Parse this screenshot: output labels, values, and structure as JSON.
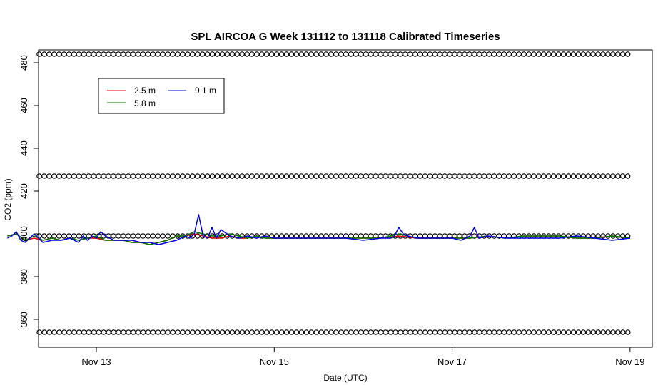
{
  "chart_data": {
    "type": "line",
    "title": "SPL AIRCOA G  Week 131112 to 131118  Calibrated Timeseries",
    "xlabel": "Date (UTC)",
    "ylabel": "CO2 (ppm)",
    "xlim": [
      12.35,
      19.25
    ],
    "ylim": [
      347,
      486
    ],
    "x_ticks": [
      {
        "value": 13,
        "label": "Nov 13"
      },
      {
        "value": 15,
        "label": "Nov 15"
      },
      {
        "value": 17,
        "label": "Nov 17"
      },
      {
        "value": 19,
        "label": "Nov 19"
      }
    ],
    "y_ticks": [
      {
        "value": 360,
        "label": "360"
      },
      {
        "value": 380,
        "label": "380"
      },
      {
        "value": 400,
        "label": "400"
      },
      {
        "value": 420,
        "label": "420"
      },
      {
        "value": 440,
        "label": "440"
      },
      {
        "value": 460,
        "label": "460"
      },
      {
        "value": 480,
        "label": "480"
      }
    ],
    "legend": {
      "placement": "top-left",
      "entries": [
        {
          "name": "2.5 m",
          "color": "#dd0000"
        },
        {
          "name": "5.8 m",
          "color": "#007700"
        },
        {
          "name": "9.1 m",
          "color": "#0000dd"
        }
      ]
    },
    "series": [
      {
        "name": "2.5 m",
        "color": "#dd0000",
        "x": [
          12.0,
          12.1,
          12.2,
          12.3,
          12.4,
          12.5,
          12.6,
          12.7,
          12.8,
          12.9,
          13.0,
          13.1,
          13.2,
          13.3,
          13.4,
          13.5,
          13.6,
          13.7,
          13.8,
          13.9,
          14.0,
          14.1,
          14.2,
          14.3,
          14.4,
          14.5,
          14.6,
          14.7,
          14.8,
          14.9,
          15.0,
          15.2,
          15.4,
          15.6,
          15.8,
          16.0,
          16.2,
          16.4,
          16.6,
          16.8,
          17.0,
          17.2,
          17.4,
          17.6,
          17.8,
          18.0,
          18.2,
          18.4,
          18.6,
          18.8,
          19.0
        ],
        "y": [
          399,
          400,
          397,
          398,
          397,
          398,
          397,
          398,
          397,
          398,
          398,
          397,
          397,
          397,
          396,
          396,
          395,
          396,
          397,
          399,
          399,
          400,
          399,
          398,
          398,
          399,
          398,
          398,
          399,
          398,
          398,
          398,
          398,
          398,
          398,
          398,
          398,
          399,
          398,
          398,
          398,
          398,
          399,
          398,
          399,
          399,
          399,
          398,
          398,
          399,
          398
        ]
      },
      {
        "name": "5.8 m",
        "color": "#007700",
        "x": [
          12.0,
          12.1,
          12.2,
          12.3,
          12.4,
          12.5,
          12.6,
          12.7,
          12.8,
          12.9,
          13.0,
          13.1,
          13.2,
          13.3,
          13.4,
          13.5,
          13.6,
          13.7,
          13.8,
          13.9,
          14.0,
          14.1,
          14.2,
          14.3,
          14.4,
          14.5,
          14.6,
          14.7,
          14.8,
          14.9,
          15.0,
          15.2,
          15.4,
          15.6,
          15.8,
          16.0,
          16.2,
          16.4,
          16.6,
          16.8,
          17.0,
          17.2,
          17.4,
          17.6,
          17.8,
          18.0,
          18.2,
          18.4,
          18.6,
          18.8,
          19.0
        ],
        "y": [
          399,
          400,
          397,
          399,
          397,
          398,
          397,
          398,
          397,
          398,
          399,
          397,
          397,
          397,
          396,
          396,
          395,
          396,
          397,
          399,
          399,
          401,
          400,
          399,
          399,
          400,
          399,
          398,
          399,
          398,
          398,
          398,
          398,
          398,
          398,
          398,
          398,
          400,
          398,
          398,
          398,
          398,
          399,
          398,
          399,
          399,
          399,
          398,
          398,
          399,
          398
        ]
      },
      {
        "name": "9.1 m",
        "color": "#0000dd",
        "x": [
          12.0,
          12.05,
          12.1,
          12.15,
          12.2,
          12.25,
          12.3,
          12.35,
          12.4,
          12.5,
          12.6,
          12.7,
          12.8,
          12.85,
          12.9,
          12.95,
          13.0,
          13.05,
          13.1,
          13.2,
          13.3,
          13.4,
          13.5,
          13.6,
          13.7,
          13.8,
          13.9,
          14.0,
          14.05,
          14.1,
          14.15,
          14.2,
          14.25,
          14.3,
          14.35,
          14.4,
          14.5,
          14.6,
          14.7,
          14.8,
          14.9,
          15.0,
          15.2,
          15.4,
          15.6,
          15.8,
          16.0,
          16.2,
          16.3,
          16.35,
          16.4,
          16.45,
          16.5,
          16.6,
          16.8,
          17.0,
          17.1,
          17.2,
          17.25,
          17.3,
          17.4,
          17.6,
          17.8,
          18.0,
          18.2,
          18.4,
          18.6,
          18.8,
          19.0
        ],
        "y": [
          398,
          399,
          401,
          397,
          396,
          398,
          400,
          398,
          396,
          397,
          397,
          398,
          396,
          399,
          397,
          399,
          398,
          401,
          399,
          397,
          397,
          397,
          396,
          396,
          395,
          396,
          397,
          399,
          398,
          400,
          409,
          399,
          398,
          403,
          398,
          402,
          399,
          398,
          399,
          398,
          399,
          398,
          398,
          398,
          398,
          398,
          397,
          398,
          398,
          399,
          403,
          400,
          399,
          398,
          398,
          398,
          397,
          399,
          403,
          398,
          399,
          398,
          398,
          398,
          398,
          399,
          398,
          397,
          398
        ]
      }
    ],
    "markers": {
      "shape": "circle-open",
      "rows": [
        {
          "y": 484,
          "x_start": 12.08,
          "x_end": 19.0,
          "step": 0.0556
        },
        {
          "y": 427,
          "x_start": 12.08,
          "x_end": 19.0,
          "step": 0.0556
        },
        {
          "y": 399,
          "x_start": 12.08,
          "x_end": 19.0,
          "step": 0.0556
        },
        {
          "y": 354,
          "x_start": 11.97,
          "x_end": 19.0,
          "step": 0.0556
        }
      ]
    }
  }
}
